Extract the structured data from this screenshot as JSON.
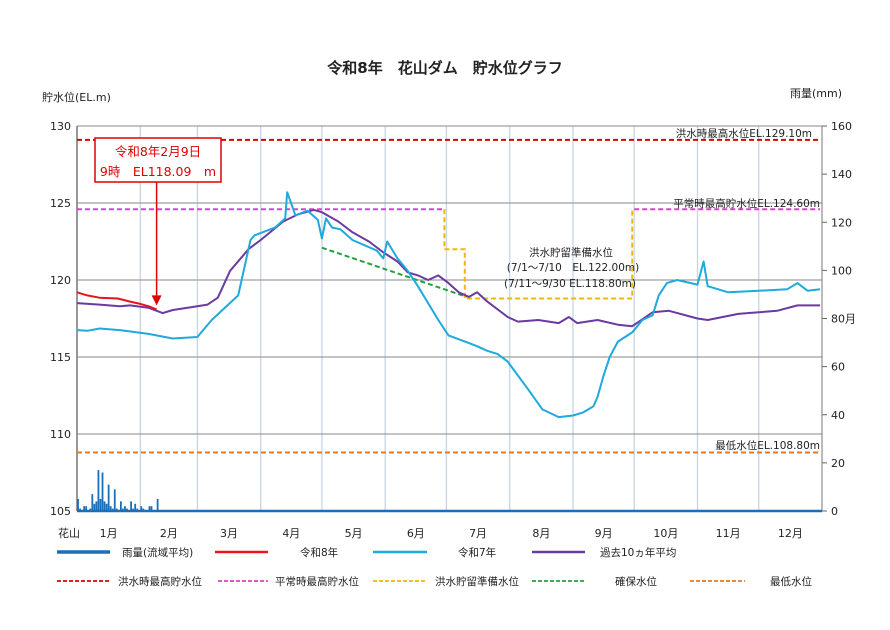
{
  "chart_data": {
    "type": "line",
    "title": "令和8年　花山ダム　貯水位グラフ",
    "ylabel_left": "貯水位(EL.m)",
    "ylabel_right": "雨量(mm)",
    "xlabel_prefix": "花山",
    "ylim_left": [
      105,
      130
    ],
    "yticks_left": [
      "105",
      "110",
      "115",
      "120",
      "125",
      "130"
    ],
    "ylim_right": [
      0,
      160
    ],
    "yticks_right": [
      "0",
      "20",
      "40",
      "60",
      "80月",
      "100",
      "120",
      "140",
      "160"
    ],
    "months": [
      "1月",
      "2月",
      "3月",
      "4月",
      "5月",
      "6月",
      "7月",
      "8月",
      "9月",
      "10月",
      "11月",
      "12月"
    ],
    "grid": true,
    "colors": {
      "rain": "#1a6fb8",
      "r8": "#e8141c",
      "r7": "#1fa9dd",
      "avg10": "#6a3aa0",
      "flood_max": "#e00000",
      "normal_max": "#e040c8",
      "prep": "#f5b800",
      "secure": "#22a040",
      "min": "#e87a1e"
    },
    "rain": {
      "name": "雨量(流域平均)",
      "start": "1/1",
      "values": [
        5,
        1,
        0,
        2,
        2,
        0,
        1,
        7,
        3,
        4,
        17,
        5,
        16,
        4,
        3,
        11,
        2,
        1,
        9,
        1,
        0,
        4,
        1,
        2,
        1,
        0,
        4,
        1,
        3,
        1,
        0,
        2,
        1,
        0,
        0,
        2,
        2,
        0,
        0,
        5
      ]
    },
    "series": [
      {
        "name": "令和8年",
        "key": "r8",
        "points": [
          [
            "1/1",
            119.2
          ],
          [
            "1/6",
            119.0
          ],
          [
            "1/12",
            118.85
          ],
          [
            "1/21",
            118.8
          ],
          [
            "1/27",
            118.6
          ],
          [
            "2/1",
            118.45
          ],
          [
            "2/5",
            118.3
          ],
          [
            "2/9",
            118.09
          ]
        ]
      },
      {
        "name": "令和7年",
        "key": "r7",
        "points": [
          [
            "1/1",
            116.75
          ],
          [
            "1/6",
            116.7
          ],
          [
            "1/12",
            116.85
          ],
          [
            "1/22",
            116.75
          ],
          [
            "2/5",
            116.5
          ],
          [
            "2/17",
            116.2
          ],
          [
            "3/1",
            116.3
          ],
          [
            "3/8",
            117.4
          ],
          [
            "3/21",
            119.0
          ],
          [
            "3/27",
            122.6
          ],
          [
            "3/29",
            122.9
          ],
          [
            "4/8",
            123.4
          ],
          [
            "4/13",
            124.0
          ],
          [
            "4/14",
            125.7
          ],
          [
            "4/18",
            124.2
          ],
          [
            "4/24",
            124.5
          ],
          [
            "4/29",
            123.9
          ],
          [
            "5/1",
            122.7
          ],
          [
            "5/3",
            124.0
          ],
          [
            "5/6",
            123.4
          ],
          [
            "5/10",
            123.3
          ],
          [
            "5/16",
            122.6
          ],
          [
            "5/28",
            121.9
          ],
          [
            "5/31",
            121.4
          ],
          [
            "6/2",
            122.5
          ],
          [
            "6/7",
            121.4
          ],
          [
            "6/12",
            120.6
          ],
          [
            "6/17",
            119.6
          ],
          [
            "6/27",
            117.4
          ],
          [
            "7/2",
            116.4
          ],
          [
            "7/12",
            115.9
          ],
          [
            "7/16",
            115.7
          ],
          [
            "7/21",
            115.4
          ],
          [
            "7/26",
            115.2
          ],
          [
            "7/31",
            114.7
          ],
          [
            "8/5",
            113.8
          ],
          [
            "8/10",
            112.9
          ],
          [
            "8/17",
            111.6
          ],
          [
            "8/25",
            111.1
          ],
          [
            "9/1",
            111.2
          ],
          [
            "9/6",
            111.4
          ],
          [
            "9/11",
            111.8
          ],
          [
            "9/13",
            112.4
          ],
          [
            "9/16",
            113.8
          ],
          [
            "9/19",
            115.0
          ],
          [
            "9/23",
            116.0
          ],
          [
            "9/30",
            116.6
          ],
          [
            "10/5",
            117.4
          ],
          [
            "10/10",
            117.7
          ],
          [
            "10/13",
            119.0
          ],
          [
            "10/17",
            119.8
          ],
          [
            "10/22",
            120.0
          ],
          [
            "11/1",
            119.7
          ],
          [
            "11/4",
            121.2
          ],
          [
            "11/6",
            119.6
          ],
          [
            "11/11",
            119.4
          ],
          [
            "11/16",
            119.2
          ],
          [
            "12/1",
            119.3
          ],
          [
            "12/15",
            119.4
          ],
          [
            "12/20",
            119.8
          ],
          [
            "12/25",
            119.3
          ],
          [
            "12/31",
            119.4
          ]
        ]
      },
      {
        "name": "過去10ヵ年平均",
        "key": "avg10",
        "points": [
          [
            "1/1",
            118.5
          ],
          [
            "1/12",
            118.4
          ],
          [
            "1/22",
            118.3
          ],
          [
            "1/27",
            118.35
          ],
          [
            "2/5",
            118.2
          ],
          [
            "2/12",
            117.85
          ],
          [
            "2/17",
            118.05
          ],
          [
            "2/27",
            118.25
          ],
          [
            "3/6",
            118.4
          ],
          [
            "3/11",
            118.85
          ],
          [
            "3/17",
            120.6
          ],
          [
            "3/26",
            122.0
          ],
          [
            "4/1",
            122.6
          ],
          [
            "4/12",
            123.8
          ],
          [
            "4/19",
            124.25
          ],
          [
            "4/27",
            124.55
          ],
          [
            "5/1",
            124.4
          ],
          [
            "5/9",
            123.8
          ],
          [
            "5/16",
            123.1
          ],
          [
            "5/24",
            122.5
          ],
          [
            "5/31",
            121.8
          ],
          [
            "6/7",
            121.2
          ],
          [
            "6/12",
            120.5
          ],
          [
            "6/17",
            120.3
          ],
          [
            "6/22",
            120.0
          ],
          [
            "6/27",
            120.3
          ],
          [
            "7/2",
            119.8
          ],
          [
            "7/7",
            119.2
          ],
          [
            "7/12",
            118.9
          ],
          [
            "7/16",
            119.2
          ],
          [
            "7/21",
            118.6
          ],
          [
            "7/31",
            117.6
          ],
          [
            "8/5",
            117.3
          ],
          [
            "8/15",
            117.4
          ],
          [
            "8/25",
            117.2
          ],
          [
            "8/30",
            117.6
          ],
          [
            "9/3",
            117.2
          ],
          [
            "9/13",
            117.4
          ],
          [
            "9/23",
            117.1
          ],
          [
            "9/30",
            117.0
          ],
          [
            "10/10",
            117.9
          ],
          [
            "10/18",
            118.0
          ],
          [
            "11/1",
            117.5
          ],
          [
            "11/6",
            117.4
          ],
          [
            "11/21",
            117.8
          ],
          [
            "12/1",
            117.9
          ],
          [
            "12/10",
            118.0
          ],
          [
            "12/20",
            118.35
          ],
          [
            "12/31",
            118.35
          ]
        ]
      }
    ],
    "reference_lines": [
      {
        "name": "洪水時最高貯水位",
        "key": "flood_max",
        "points": [
          [
            "1/1",
            129.1
          ],
          [
            "12/31",
            129.1
          ]
        ],
        "label": "洪水時最高水位EL.129.10m"
      },
      {
        "name": "平常時最高貯水位",
        "key": "normal_max",
        "points": [
          [
            "1/1",
            124.6
          ],
          [
            "6/30",
            124.6
          ]
        ],
        "points2": [
          [
            "10/1",
            124.6
          ],
          [
            "12/31",
            124.6
          ]
        ],
        "label": "平常時最高貯水位EL.124.60m"
      },
      {
        "name": "洪水貯留準備水位",
        "key": "prep",
        "points": [
          [
            "6/30",
            124.6
          ],
          [
            "6/30",
            122.0
          ],
          [
            "7/10",
            122.0
          ],
          [
            "7/10",
            118.8
          ],
          [
            "9/30",
            118.8
          ],
          [
            "9/30",
            124.6
          ]
        ],
        "label": "洪水貯留準備水位",
        "label2": "(7/1～7/10　EL.122.00m)",
        "label3": "(7/11～9/30 EL.118.80m)"
      },
      {
        "name": "確保水位",
        "key": "secure",
        "points": [
          [
            "5/1",
            122.1
          ],
          [
            "7/11",
            118.9
          ]
        ]
      },
      {
        "name": "最低水位",
        "key": "min",
        "points": [
          [
            "1/1",
            108.8
          ],
          [
            "12/31",
            108.8
          ]
        ],
        "label": "最低水位EL.108.80m"
      }
    ],
    "annotation": {
      "line1": "令和8年2月9日",
      "line2": "9時　EL118.09　m",
      "date": "2/9",
      "value": 118.09
    }
  }
}
